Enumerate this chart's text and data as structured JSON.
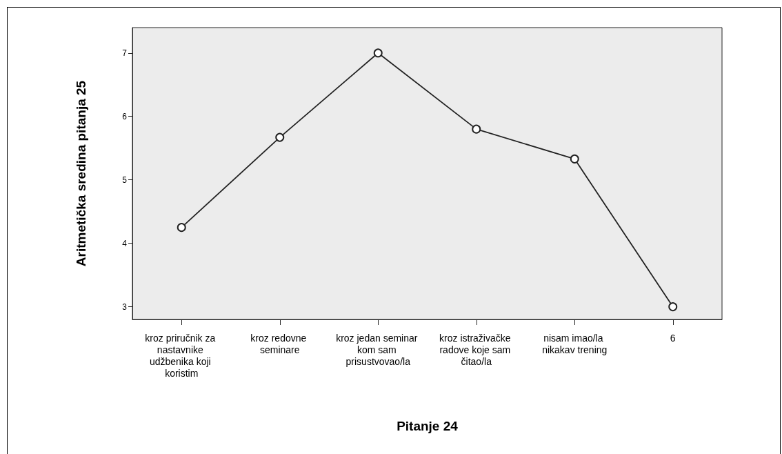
{
  "chart_data": {
    "type": "line",
    "xlabel": "Pitanje 24",
    "ylabel": "Aritmetička sredina pitanja 25",
    "categories": [
      "kroz priručnik za nastavnike udžbenika koji koristim",
      "kroz redovne seminare",
      "kroz jedan seminar kom sam prisustvovao/la",
      "kroz istraživačke radove koje sam čitao/la",
      "nisam imao/la nikakav trening",
      "6"
    ],
    "series": [
      {
        "color": "#222222",
        "values": [
          4.25,
          5.67,
          7.0,
          5.8,
          5.33,
          3.0
        ]
      }
    ],
    "ylim": [
      2.8,
      7.4
    ],
    "yticks": [
      3,
      4,
      5,
      6,
      7
    ],
    "grid": false,
    "marker": "circle",
    "line_style": "solid"
  }
}
